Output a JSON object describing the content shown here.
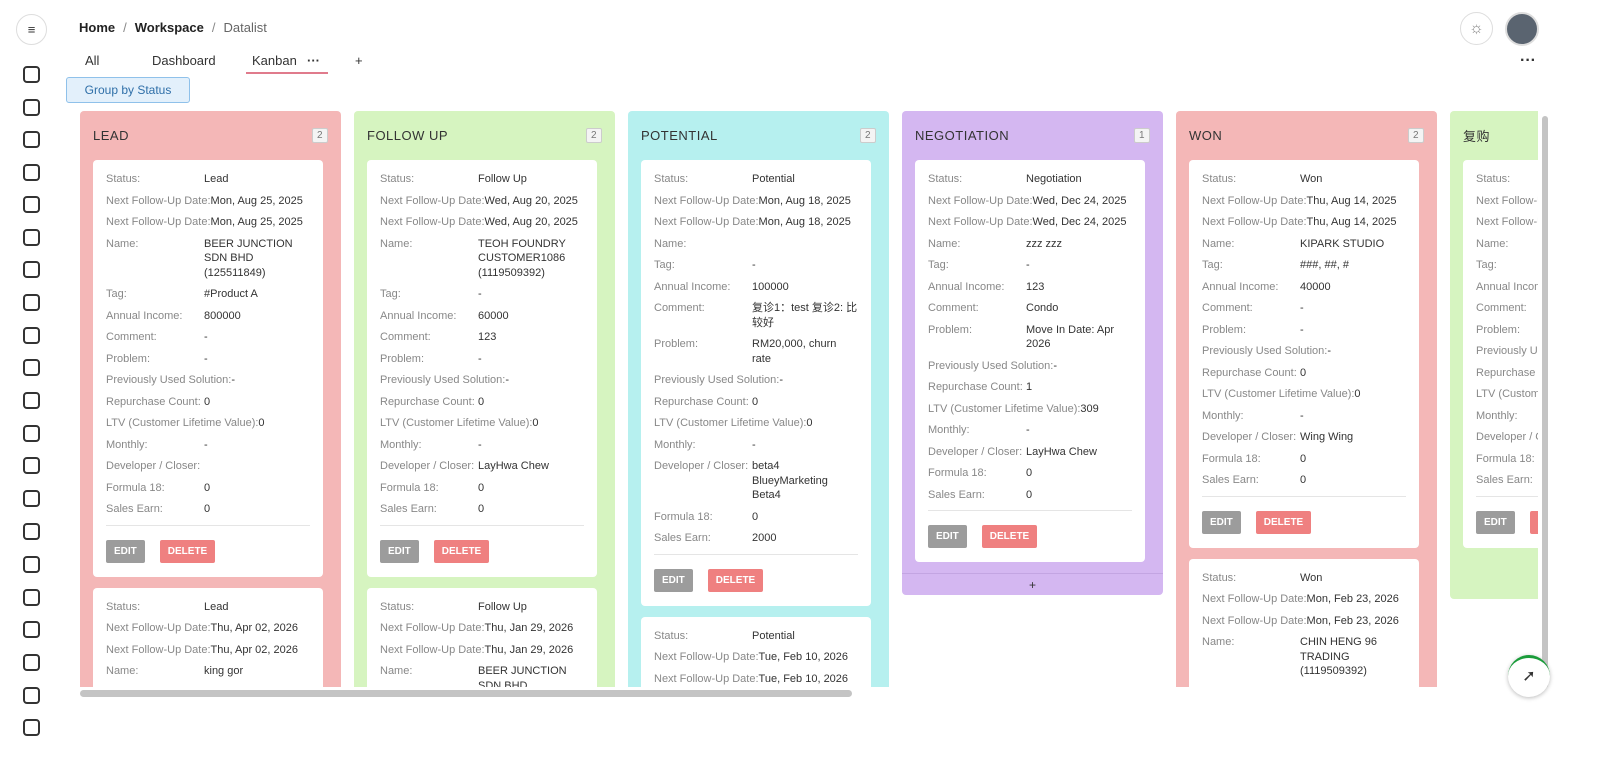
{
  "breadcrumb": [
    "Home",
    "Workspace",
    "Datalist"
  ],
  "tabs": [
    "All",
    "Dashboard",
    "Kanban"
  ],
  "add_tab": "+",
  "group_button": "Group by Status",
  "buttons": {
    "edit": "EDIT",
    "delete": "DELETE"
  },
  "columns": [
    {
      "title": "LEAD",
      "count": 2,
      "color": "#f4b7b7",
      "cards": [
        {
          "fields": [
            {
              "label": "Status:",
              "value": "Lead"
            },
            {
              "label": "Next Follow-Up Date:",
              "value": "Mon, Aug 25, 2025"
            },
            {
              "label": "Next Follow-Up Date:",
              "value": "Mon, Aug 25, 2025"
            },
            {
              "label": "Name:",
              "value": "BEER JUNCTION SDN BHD (125511849)"
            },
            {
              "label": "Tag:",
              "value": "#Product A"
            },
            {
              "label": "Annual Income:",
              "value": "800000"
            },
            {
              "label": "Comment:",
              "value": "-"
            },
            {
              "label": "Problem:",
              "value": "-"
            },
            {
              "label": "Previously Used Solution:",
              "value": "-"
            },
            {
              "label": "Repurchase Count:",
              "value": "0"
            },
            {
              "label": "LTV (Customer Lifetime Value):",
              "value": "0"
            },
            {
              "label": "Monthly:",
              "value": "-"
            },
            {
              "label": "Developer / Closer:"
            },
            {
              "label": "Formula 18:",
              "value": "0"
            },
            {
              "label": "Sales Earn:",
              "value": "0"
            }
          ]
        },
        {
          "fields": [
            {
              "label": "Status:",
              "value": "Lead"
            },
            {
              "label": "Next Follow-Up Date:",
              "value": "Thu, Apr 02, 2026"
            },
            {
              "label": "Next Follow-Up Date:",
              "value": "Thu, Apr 02, 2026"
            },
            {
              "label": "Name:",
              "value": "king gor"
            }
          ]
        }
      ]
    },
    {
      "title": "FOLLOW UP",
      "count": 2,
      "color": "#d6f4c0",
      "cards": [
        {
          "fields": [
            {
              "label": "Status:",
              "value": "Follow Up"
            },
            {
              "label": "Next Follow-Up Date:",
              "value": "Wed, Aug 20, 2025"
            },
            {
              "label": "Next Follow-Up Date:",
              "value": "Wed, Aug 20, 2025"
            },
            {
              "label": "Name:",
              "value": "TEOH FOUNDRY CUSTOMER1086 (1119509392)"
            },
            {
              "label": "Tag:",
              "value": "-"
            },
            {
              "label": "Annual Income:",
              "value": "60000"
            },
            {
              "label": "Comment:",
              "value": "123"
            },
            {
              "label": "Problem:",
              "value": "-"
            },
            {
              "label": "Previously Used Solution:",
              "value": "-"
            },
            {
              "label": "Repurchase Count:",
              "value": "0"
            },
            {
              "label": "LTV (Customer Lifetime Value):",
              "value": "0"
            },
            {
              "label": "Monthly:",
              "value": "-"
            },
            {
              "label": "Developer / Closer:",
              "value": "LayHwa Chew"
            },
            {
              "label": "Formula 18:",
              "value": "0"
            },
            {
              "label": "Sales Earn:",
              "value": "0"
            }
          ]
        },
        {
          "fields": [
            {
              "label": "Status:",
              "value": "Follow Up"
            },
            {
              "label": "Next Follow-Up Date:",
              "value": "Thu, Jan 29, 2026"
            },
            {
              "label": "Next Follow-Up Date:",
              "value": "Thu, Jan 29, 2026"
            },
            {
              "label": "Name:",
              "value": "BEER JUNCTION SDN BHD"
            }
          ]
        }
      ]
    },
    {
      "title": "POTENTIAL",
      "count": 2,
      "color": "#b6f0ef",
      "cards": [
        {
          "fields": [
            {
              "label": "Status:",
              "value": "Potential"
            },
            {
              "label": "Next Follow-Up Date:",
              "value": "Mon, Aug 18, 2025"
            },
            {
              "label": "Next Follow-Up Date:",
              "value": "Mon, Aug 18, 2025"
            },
            {
              "label": "Name:"
            },
            {
              "label": "Tag:",
              "value": "-"
            },
            {
              "label": "Annual Income:",
              "value": "100000"
            },
            {
              "label": "Comment:",
              "value": "复诊1：test 复诊2: 比较好"
            },
            {
              "label": "Problem:",
              "value": "RM20,000, churn rate"
            },
            {
              "label": "Previously Used Solution:",
              "value": "-"
            },
            {
              "label": "Repurchase Count:",
              "value": "0"
            },
            {
              "label": "LTV (Customer Lifetime Value):",
              "value": "0"
            },
            {
              "label": "Monthly:",
              "value": "-"
            },
            {
              "label": "Developer / Closer:",
              "value": "beta4 BlueyMarketing Beta4"
            },
            {
              "label": "Formula 18:",
              "value": "0"
            },
            {
              "label": "Sales Earn:",
              "value": "2000"
            }
          ]
        },
        {
          "fields": [
            {
              "label": "Status:",
              "value": "Potential"
            },
            {
              "label": "Next Follow-Up Date:",
              "value": "Tue, Feb 10, 2026"
            },
            {
              "label": "Next Follow-Up Date:",
              "value": "Tue, Feb 10, 2026"
            }
          ]
        }
      ]
    },
    {
      "title": "NEGOTIATION",
      "count": 1,
      "color": "#d4b7f1",
      "add": "+",
      "cards": [
        {
          "fields": [
            {
              "label": "Status:",
              "value": "Negotiation"
            },
            {
              "label": "Next Follow-Up Date:",
              "value": "Wed, Dec 24, 2025"
            },
            {
              "label": "Next Follow-Up Date:",
              "value": "Wed, Dec 24, 2025"
            },
            {
              "label": "Name:",
              "value": "zzz zzz"
            },
            {
              "label": "Tag:",
              "value": "-"
            },
            {
              "label": "Annual Income:",
              "value": "123"
            },
            {
              "label": "Comment:",
              "value": "Condo"
            },
            {
              "label": "Problem:",
              "value": "Move In Date: Apr 2026"
            },
            {
              "label": "Previously Used Solution:",
              "value": "-"
            },
            {
              "label": "Repurchase Count:",
              "value": "1"
            },
            {
              "label": "LTV (Customer Lifetime Value):",
              "value": "309"
            },
            {
              "label": "Monthly:",
              "value": "-"
            },
            {
              "label": "Developer / Closer:",
              "value": "LayHwa Chew"
            },
            {
              "label": "Formula 18:",
              "value": "0"
            },
            {
              "label": "Sales Earn:",
              "value": "0"
            }
          ]
        }
      ]
    },
    {
      "title": "WON",
      "count": 2,
      "color": "#f4b7b7",
      "cards": [
        {
          "fields": [
            {
              "label": "Status:",
              "value": "Won"
            },
            {
              "label": "Next Follow-Up Date:",
              "value": "Thu, Aug 14, 2025"
            },
            {
              "label": "Next Follow-Up Date:",
              "value": "Thu, Aug 14, 2025"
            },
            {
              "label": "Name:",
              "value": "KIPARK STUDIO"
            },
            {
              "label": "Tag:",
              "value": "###, ##, #"
            },
            {
              "label": "Annual Income:",
              "value": "40000"
            },
            {
              "label": "Comment:",
              "value": "-"
            },
            {
              "label": "Problem:",
              "value": "-"
            },
            {
              "label": "Previously Used Solution:",
              "value": "-"
            },
            {
              "label": "Repurchase Count:",
              "value": "0"
            },
            {
              "label": "LTV (Customer Lifetime Value):",
              "value": "0"
            },
            {
              "label": "Monthly:",
              "value": "-"
            },
            {
              "label": "Developer / Closer:",
              "value": "Wing Wing"
            },
            {
              "label": "Formula 18:",
              "value": "0"
            },
            {
              "label": "Sales Earn:",
              "value": "0"
            }
          ]
        },
        {
          "fields": [
            {
              "label": "Status:",
              "value": "Won"
            },
            {
              "label": "Next Follow-Up Date:",
              "value": "Mon, Feb 23, 2026"
            },
            {
              "label": "Next Follow-Up Date:",
              "value": "Mon, Feb 23, 2026"
            },
            {
              "label": "Name:",
              "value": "CHIN HENG 96 TRADING (1119509392)"
            }
          ]
        }
      ]
    },
    {
      "title": "复购",
      "color": "#d6f4c0",
      "cards": [
        {
          "fields": [
            {
              "label": "Status:"
            },
            {
              "label": "Next Follow-Up Date:"
            },
            {
              "label": "Next Follow-Up Date:"
            },
            {
              "label": "Name:"
            },
            {
              "label": "Tag:"
            },
            {
              "label": "Annual Income:"
            },
            {
              "label": "Comment:"
            },
            {
              "label": "Problem:"
            },
            {
              "label": "Previously Used Solution:"
            },
            {
              "label": "Repurchase Count:"
            },
            {
              "label": "LTV (Customer Lifetime Value):"
            },
            {
              "label": "Monthly:"
            },
            {
              "label": "Developer / Closer:"
            },
            {
              "label": "Formula 18:"
            },
            {
              "label": "Sales Earn:"
            }
          ]
        }
      ]
    }
  ]
}
